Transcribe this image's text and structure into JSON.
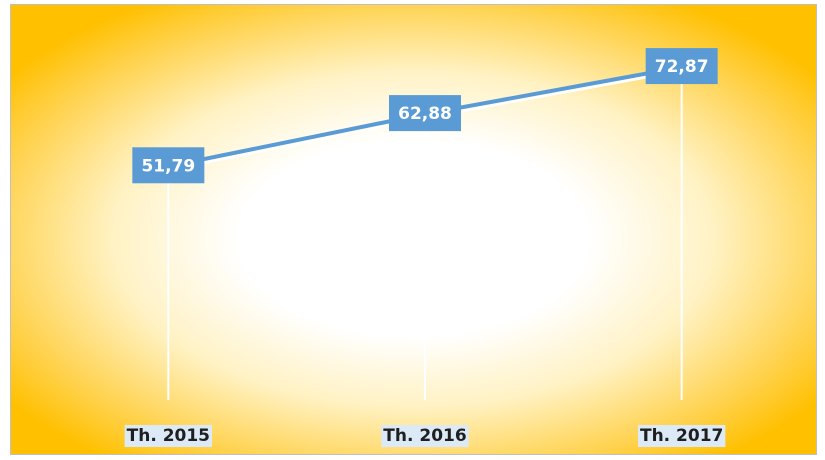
{
  "chart_data": {
    "type": "line",
    "categories": [
      "Th. 2015",
      "Th. 2016",
      "Th. 2017"
    ],
    "series": [
      {
        "color": "#5b9bd5",
        "values": [
          51.79,
          62.88,
          72.87
        ],
        "value_labels": [
          "51,79",
          "62,88",
          "72,87"
        ]
      }
    ],
    "ylim": [
      0,
      85
    ],
    "drop_lines": true
  }
}
